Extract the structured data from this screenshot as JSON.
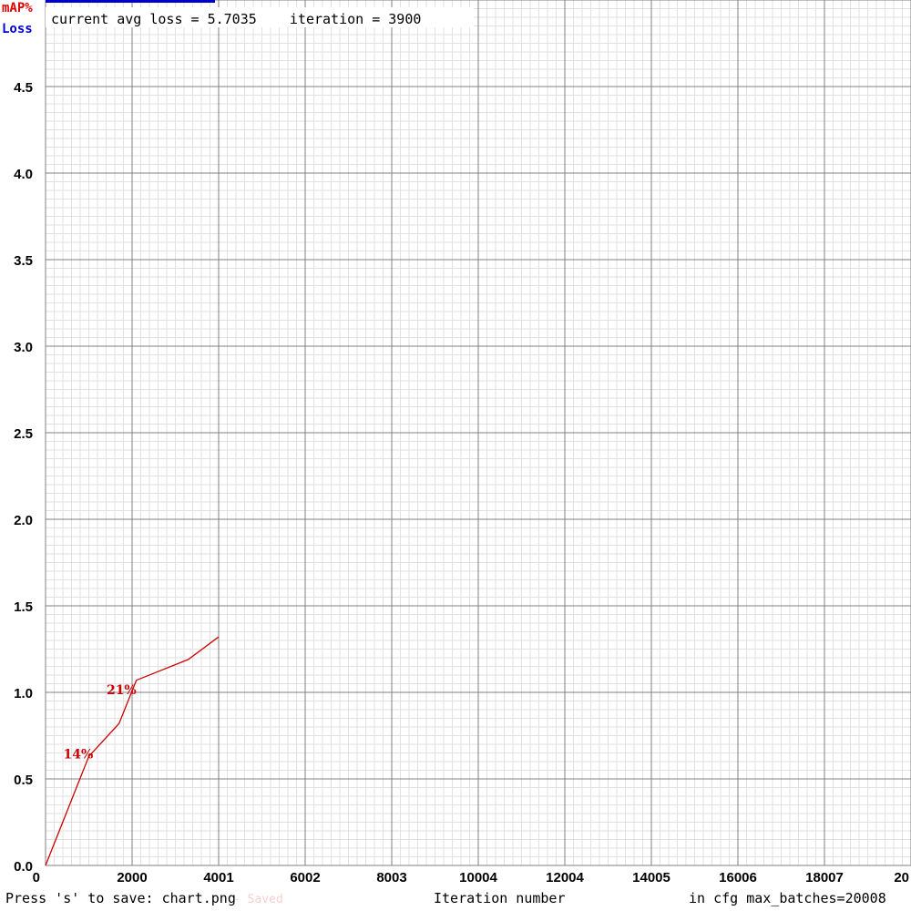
{
  "legend": {
    "map_label": "mAP%",
    "loss_label": "Loss"
  },
  "status": {
    "text": "current avg loss = 5.7035    iteration = 3900"
  },
  "footer": {
    "save_hint": "Press 's' to save: chart.png",
    "faint_text": "- Saved",
    "xaxis_title": "Iteration number",
    "max_batches": "in cfg max_batches=20008"
  },
  "colors": {
    "map": "#cc0000",
    "loss": "#0000cc",
    "grid_major": "#808080",
    "grid_minor": "#e2e2e2"
  },
  "chart_data": {
    "type": "line",
    "title": "",
    "xlabel": "Iteration number",
    "ylabel": "",
    "xlim": [
      0,
      20008
    ],
    "ylim": [
      0,
      5.0
    ],
    "x_tick_labels": [
      "0",
      "2000",
      "4001",
      "6002",
      "8003",
      "10004",
      "12004",
      "14005",
      "16006",
      "18007",
      "20"
    ],
    "y_tick_labels": [
      "0.0",
      "0.5",
      "1.0",
      "1.5",
      "2.0",
      "2.5",
      "3.0",
      "3.5",
      "4.0",
      "4.5"
    ],
    "grid": true,
    "legend_placement": "top-left",
    "series": [
      {
        "name": "mAP%",
        "color": "#cc0000",
        "x": [
          0,
          1000,
          1700,
          2100,
          2600,
          3300,
          4000
        ],
        "y": [
          0.0,
          0.63,
          0.82,
          1.07,
          1.12,
          1.19,
          1.32
        ]
      }
    ],
    "annotations": [
      {
        "text": "14%",
        "x": 1000,
        "y": 0.63
      },
      {
        "text": "21%",
        "x": 2000,
        "y": 1.0
      }
    ]
  }
}
